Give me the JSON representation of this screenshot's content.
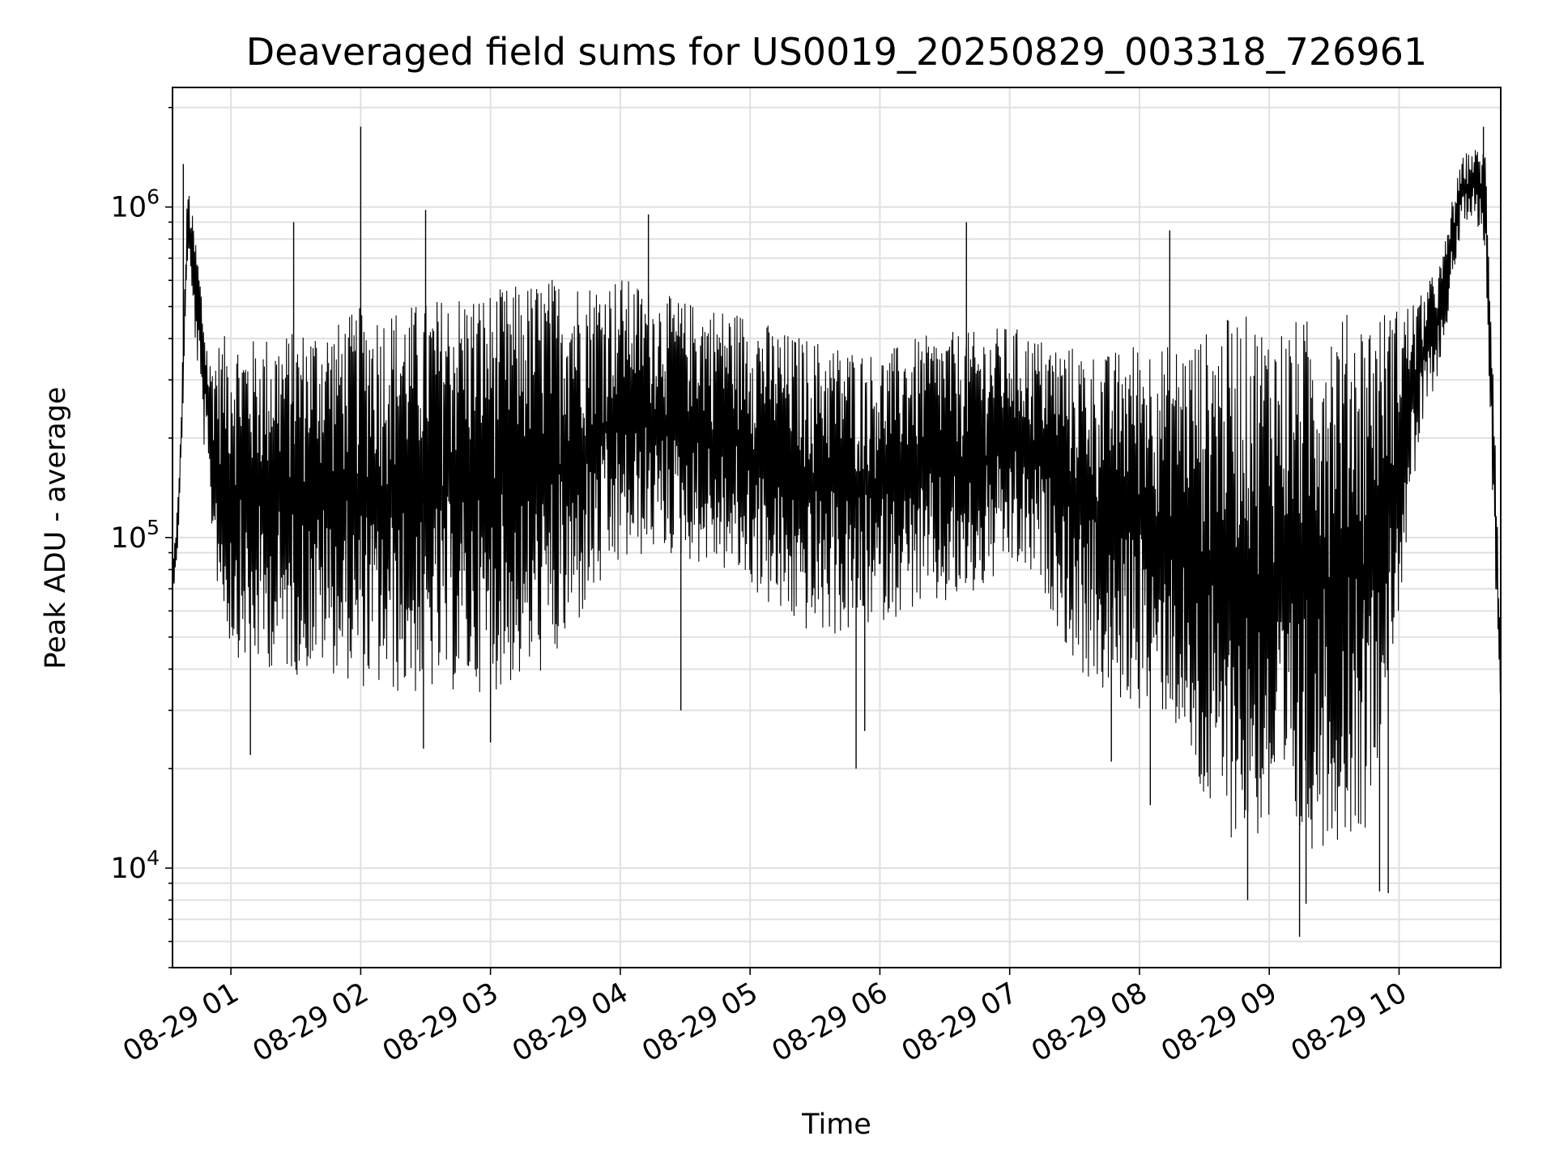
{
  "chart_data": {
    "type": "line",
    "title": "Deaveraged field sums for US0019_20250829_003318_726961",
    "xlabel": "Time",
    "ylabel": "Peak ADU - average",
    "yscale": "log",
    "ylim": [
      5000,
      2300000
    ],
    "xlim": [
      "2025-08-29 00:33",
      "2025-08-29 10:47"
    ],
    "grid": true,
    "line_color": "#000000",
    "x_ticks": [
      {
        "label": "08-29 01",
        "value": "2025-08-29 01:00"
      },
      {
        "label": "08-29 02",
        "value": "2025-08-29 02:00"
      },
      {
        "label": "08-29 03",
        "value": "2025-08-29 03:00"
      },
      {
        "label": "08-29 04",
        "value": "2025-08-29 04:00"
      },
      {
        "label": "08-29 05",
        "value": "2025-08-29 05:00"
      },
      {
        "label": "08-29 06",
        "value": "2025-08-29 06:00"
      },
      {
        "label": "08-29 07",
        "value": "2025-08-29 07:00"
      },
      {
        "label": "08-29 08",
        "value": "2025-08-29 08:00"
      },
      {
        "label": "08-29 09",
        "value": "2025-08-29 09:00"
      },
      {
        "label": "08-29 10",
        "value": "2025-08-29 10:00"
      }
    ],
    "y_ticks": [
      {
        "base": "10",
        "exp": "4",
        "value": 10000
      },
      {
        "base": "10",
        "exp": "5",
        "value": 100000
      },
      {
        "base": "10",
        "exp": "6",
        "value": 1000000
      }
    ],
    "series": [
      {
        "x": [
          "2025-08-29 00:33",
          "2025-08-29 00:36",
          "2025-08-29 00:40",
          "2025-08-29 00:45",
          "2025-08-29 00:50",
          "2025-08-29 00:55",
          "2025-08-29 01:00",
          "2025-08-29 01:10",
          "2025-08-29 01:20",
          "2025-08-29 01:30",
          "2025-08-29 01:40",
          "2025-08-29 01:50",
          "2025-08-29 02:00",
          "2025-08-29 02:15",
          "2025-08-29 02:30",
          "2025-08-29 02:45",
          "2025-08-29 03:00",
          "2025-08-29 03:15",
          "2025-08-29 03:30",
          "2025-08-29 03:45",
          "2025-08-29 04:00",
          "2025-08-29 04:15",
          "2025-08-29 04:30",
          "2025-08-29 04:45",
          "2025-08-29 05:00",
          "2025-08-29 05:15",
          "2025-08-29 05:30",
          "2025-08-29 05:45",
          "2025-08-29 06:00",
          "2025-08-29 06:15",
          "2025-08-29 06:30",
          "2025-08-29 06:45",
          "2025-08-29 07:00",
          "2025-08-29 07:15",
          "2025-08-29 07:30",
          "2025-08-29 07:45",
          "2025-08-29 08:00",
          "2025-08-29 08:15",
          "2025-08-29 08:30",
          "2025-08-29 08:45",
          "2025-08-29 09:00",
          "2025-08-29 09:15",
          "2025-08-29 09:30",
          "2025-08-29 09:45",
          "2025-08-29 10:00",
          "2025-08-29 10:10",
          "2025-08-29 10:20",
          "2025-08-29 10:25",
          "2025-08-29 10:30",
          "2025-08-29 10:35",
          "2025-08-29 10:40",
          "2025-08-29 10:44",
          "2025-08-29 10:47"
        ],
        "upper": [
          80000,
          150000,
          1200000,
          700000,
          350000,
          400000,
          420000,
          400000,
          420000,
          420000,
          450000,
          450000,
          500000,
          500000,
          520000,
          560000,
          560000,
          590000,
          620000,
          600000,
          620000,
          560000,
          520000,
          500000,
          480000,
          420000,
          400000,
          380000,
          360000,
          400000,
          420000,
          420000,
          440000,
          400000,
          380000,
          360000,
          400000,
          380000,
          420000,
          480000,
          450000,
          460000,
          480000,
          480000,
          500000,
          540000,
          700000,
          1100000,
          1450000,
          1500000,
          1500000,
          300000,
          45000
        ],
        "lower": [
          65000,
          100000,
          700000,
          300000,
          120000,
          60000,
          45000,
          40000,
          40000,
          38000,
          40000,
          38000,
          35000,
          33000,
          33000,
          34000,
          34000,
          36000,
          40000,
          60000,
          80000,
          90000,
          85000,
          80000,
          70000,
          55000,
          50000,
          50000,
          55000,
          60000,
          60000,
          65000,
          80000,
          70000,
          40000,
          32000,
          30000,
          28000,
          14000,
          12000,
          12000,
          11000,
          12000,
          13000,
          60000,
          200000,
          350000,
          600000,
          900000,
          950000,
          700000,
          90000,
          30000
        ],
        "spikes": [
          {
            "x": "2025-08-29 00:38",
            "y": 1350000
          },
          {
            "x": "2025-08-29 01:09",
            "y": 22000
          },
          {
            "x": "2025-08-29 01:29",
            "y": 900000
          },
          {
            "x": "2025-08-29 02:00",
            "y": 1750000
          },
          {
            "x": "2025-08-29 02:29",
            "y": 23000
          },
          {
            "x": "2025-08-29 02:30",
            "y": 980000
          },
          {
            "x": "2025-08-29 03:00",
            "y": 24000
          },
          {
            "x": "2025-08-29 04:13",
            "y": 950000
          },
          {
            "x": "2025-08-29 04:28",
            "y": 30000
          },
          {
            "x": "2025-08-29 05:49",
            "y": 20000
          },
          {
            "x": "2025-08-29 05:53",
            "y": 26000
          },
          {
            "x": "2025-08-29 06:40",
            "y": 900000
          },
          {
            "x": "2025-08-29 07:47",
            "y": 21000
          },
          {
            "x": "2025-08-29 08:05",
            "y": 15500
          },
          {
            "x": "2025-08-29 08:14",
            "y": 850000
          },
          {
            "x": "2025-08-29 08:50",
            "y": 8000
          },
          {
            "x": "2025-08-29 09:14",
            "y": 6200
          },
          {
            "x": "2025-08-29 09:17",
            "y": 7800
          },
          {
            "x": "2025-08-29 09:51",
            "y": 8500
          },
          {
            "x": "2025-08-29 09:55",
            "y": 8400
          },
          {
            "x": "2025-08-29 10:39",
            "y": 1750000
          }
        ]
      }
    ]
  }
}
